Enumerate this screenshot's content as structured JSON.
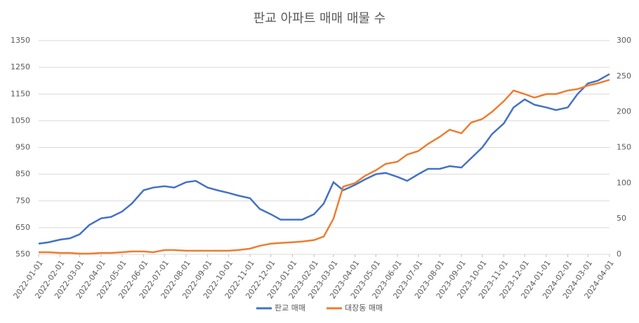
{
  "chart_data": {
    "type": "line",
    "title": "판교 아파트 매매 매물 수",
    "x": [
      "2022-01-01",
      "2022-01-15",
      "2022-02-01",
      "2022-02-15",
      "2022-03-01",
      "2022-03-15",
      "2022-04-01",
      "2022-04-15",
      "2022-05-01",
      "2022-05-15",
      "2022-06-01",
      "2022-06-15",
      "2022-07-01",
      "2022-07-15",
      "2022-08-01",
      "2022-08-15",
      "2022-09-01",
      "2022-09-15",
      "2022-10-01",
      "2022-10-15",
      "2022-11-01",
      "2022-11-15",
      "2022-12-01",
      "2022-12-15",
      "2023-01-01",
      "2023-01-15",
      "2023-02-01",
      "2023-02-15",
      "2023-03-01",
      "2023-03-15",
      "2023-04-01",
      "2023-04-15",
      "2023-05-01",
      "2023-05-15",
      "2023-06-01",
      "2023-06-15",
      "2023-07-01",
      "2023-07-15",
      "2023-08-01",
      "2023-08-15",
      "2023-09-01",
      "2023-09-15",
      "2023-10-01",
      "2023-10-15",
      "2023-11-01",
      "2023-11-15",
      "2023-12-01",
      "2023-12-15",
      "2024-01-01",
      "2024-01-15",
      "2024-02-01",
      "2024-02-15",
      "2024-03-01",
      "2024-03-15",
      "2024-04-01"
    ],
    "series": [
      {
        "name": "판교 매매",
        "color": "#4472c4",
        "values": [
          590,
          595,
          605,
          610,
          625,
          660,
          685,
          690,
          710,
          740,
          790,
          800,
          805,
          800,
          820,
          825,
          800,
          790,
          780,
          770,
          760,
          720,
          700,
          680,
          680,
          680,
          700,
          740,
          820,
          790,
          810,
          830,
          850,
          855,
          840,
          825,
          850,
          870,
          870,
          880,
          875,
          910,
          950,
          1000,
          1040,
          1100,
          1130,
          1110,
          1100,
          1090,
          1100,
          1150,
          1190,
          1200,
          1225
        ]
      },
      {
        "name": "대장동 매매",
        "color": "#ed7d31",
        "axis": "y2",
        "values": [
          3,
          3,
          2,
          2,
          1,
          1,
          2,
          2,
          3,
          4,
          4,
          3,
          6,
          6,
          5,
          5,
          5,
          5,
          5,
          6,
          8,
          12,
          15,
          16,
          17,
          18,
          20,
          25,
          50,
          95,
          100,
          110,
          118,
          127,
          130,
          140,
          145,
          155,
          165,
          175,
          170,
          185,
          190,
          200,
          215,
          230,
          225,
          220,
          225,
          225,
          230,
          232,
          237,
          240,
          245
        ]
      }
    ],
    "xlim": [
      "2022-01-01",
      "2024-04-01"
    ],
    "xticks": [
      "2022-01-01",
      "2022-02-01",
      "2022-03-01",
      "2022-04-01",
      "2022-05-01",
      "2022-06-01",
      "2022-07-01",
      "2022-08-01",
      "2022-09-01",
      "2022-10-01",
      "2022-11-01",
      "2022-12-01",
      "2023-01-01",
      "2023-02-01",
      "2023-03-01",
      "2023-04-01",
      "2023-05-01",
      "2023-06-01",
      "2023-07-01",
      "2023-08-01",
      "2023-09-01",
      "2023-10-01",
      "2023-11-01",
      "2023-12-01",
      "2024-01-01",
      "2024-02-01",
      "2024-03-01",
      "2024-04-01"
    ],
    "ylim": [
      550,
      1350
    ],
    "yticks": [
      550,
      650,
      750,
      850,
      950,
      1050,
      1150,
      1250,
      1350
    ],
    "y2lim": [
      0,
      300
    ],
    "y2ticks": [
      0,
      50,
      100,
      150,
      200,
      250,
      300
    ],
    "grid": true,
    "legend": "bottom"
  }
}
